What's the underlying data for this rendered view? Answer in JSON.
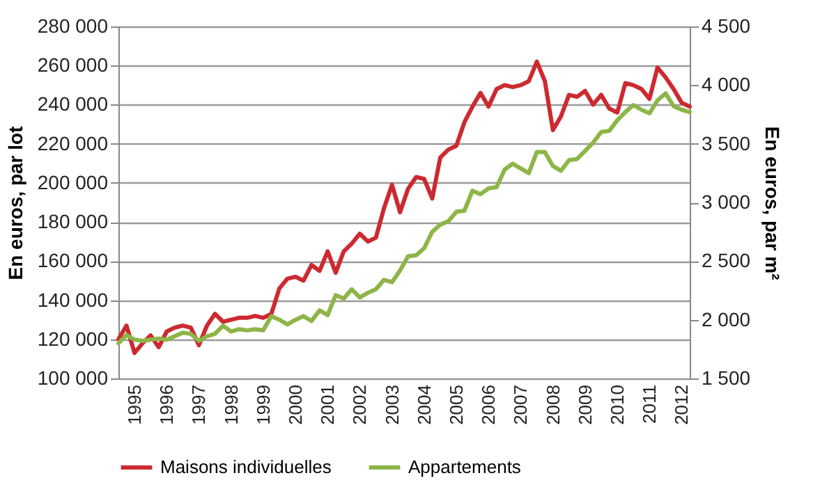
{
  "chart_data": {
    "type": "line",
    "xlabel": null,
    "ylabel": "En euros, par lot",
    "y2label": "En euros, par m²",
    "categories": [
      null,
      null,
      "1995",
      null,
      null,
      null,
      "1996",
      null,
      null,
      null,
      "1997",
      null,
      null,
      null,
      "1998",
      null,
      null,
      null,
      "1999",
      null,
      null,
      null,
      "2000",
      null,
      null,
      null,
      "2001",
      null,
      null,
      null,
      "2002",
      null,
      null,
      null,
      "2003",
      null,
      null,
      null,
      "2004",
      null,
      null,
      null,
      "2005",
      null,
      null,
      null,
      "2006",
      null,
      null,
      null,
      "2007",
      null,
      null,
      null,
      "2008",
      null,
      null,
      null,
      "2009",
      null,
      null,
      null,
      "2010",
      null,
      null,
      null,
      "2011",
      null,
      null,
      null,
      "2012",
      null
    ],
    "series": [
      {
        "name": "Maisons individuelles",
        "color": "#cc2a30",
        "values": [
          120000,
          127000,
          113000,
          118000,
          122000,
          116000,
          124000,
          126000,
          127000,
          126000,
          117000,
          127000,
          133000,
          129000,
          130000,
          131000,
          131000,
          132000,
          131000,
          133000,
          146000,
          151000,
          152000,
          150000,
          158000,
          155000,
          165000,
          154000,
          165000,
          169000,
          174000,
          170000,
          172000,
          187000,
          199000,
          185000,
          197000,
          203000,
          202000,
          192000,
          213000,
          217000,
          219000,
          231000,
          239000,
          246000,
          239000,
          248000,
          250000,
          249000,
          250000,
          252000,
          262000,
          252000,
          227000,
          234000,
          245000,
          244000,
          247000,
          240000,
          245000,
          238000,
          236000,
          251000,
          250000,
          248000,
          243000,
          259000,
          254000,
          248000,
          241000,
          239000
        ]
      },
      {
        "name": "Appartements",
        "color": "#8db548",
        "axis": "y2",
        "values": [
          1800,
          1870,
          1830,
          1820,
          1830,
          1840,
          1830,
          1860,
          1890,
          1880,
          1820,
          1860,
          1880,
          1950,
          1900,
          1920,
          1910,
          1920,
          1910,
          2030,
          2000,
          1960,
          2000,
          2030,
          1990,
          2080,
          2040,
          2210,
          2180,
          2260,
          2190,
          2230,
          2260,
          2340,
          2320,
          2420,
          2540,
          2550,
          2610,
          2750,
          2810,
          2840,
          2920,
          2930,
          3100,
          3070,
          3120,
          3130,
          3280,
          3330,
          3290,
          3250,
          3430,
          3430,
          3310,
          3270,
          3360,
          3370,
          3440,
          3510,
          3600,
          3610,
          3700,
          3770,
          3830,
          3790,
          3760,
          3870,
          3930,
          3820,
          3790,
          3770
        ]
      }
    ],
    "ylim": [
      100000,
      280000
    ],
    "yticks": [
      {
        "value": 100000,
        "label": "100 000"
      },
      {
        "value": 120000,
        "label": "120 000"
      },
      {
        "value": 140000,
        "label": "140 000"
      },
      {
        "value": 160000,
        "label": "160 000"
      },
      {
        "value": 180000,
        "label": "180 000"
      },
      {
        "value": 200000,
        "label": "200 000"
      },
      {
        "value": 220000,
        "label": "220 000"
      },
      {
        "value": 240000,
        "label": "240 000"
      },
      {
        "value": 260000,
        "label": "260 000"
      },
      {
        "value": 280000,
        "label": "280 000"
      }
    ],
    "y2lim": [
      1500,
      4500
    ],
    "y2ticks": [
      {
        "value": 1500,
        "label": "1 500"
      },
      {
        "value": 2000,
        "label": "2 000"
      },
      {
        "value": 2500,
        "label": "2 500"
      },
      {
        "value": 3000,
        "label": "3 000"
      },
      {
        "value": 3500,
        "label": "3 500"
      },
      {
        "value": 4000,
        "label": "4 000"
      },
      {
        "value": 4500,
        "label": "4 500"
      }
    ],
    "grid": "y",
    "legend": "bottom",
    "marker": "none",
    "line_style": "solid"
  }
}
